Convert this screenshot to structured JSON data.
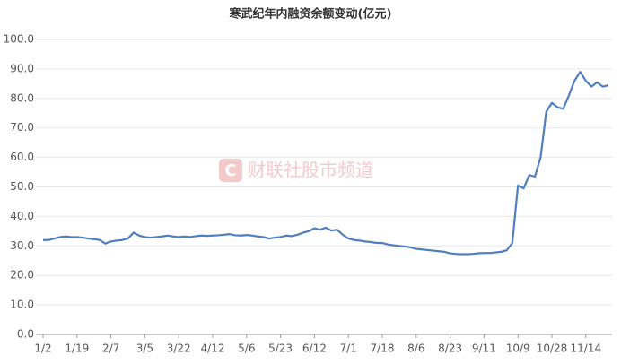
{
  "chart_data": {
    "type": "line",
    "title": "寒武纪年内融资余额变动(亿元)",
    "watermark": "财联社股市频道",
    "categories": [
      "1/2",
      null,
      null,
      null,
      null,
      null,
      "1/19",
      null,
      null,
      null,
      null,
      null,
      "2/7",
      null,
      null,
      null,
      null,
      null,
      "3/5",
      null,
      null,
      null,
      null,
      null,
      "3/22",
      null,
      null,
      null,
      null,
      null,
      "4/12",
      null,
      null,
      null,
      null,
      null,
      "5/6",
      null,
      null,
      null,
      null,
      null,
      "5/23",
      null,
      null,
      null,
      null,
      null,
      "6/12",
      null,
      null,
      null,
      null,
      null,
      "7/1",
      null,
      null,
      null,
      null,
      null,
      "7/18",
      null,
      null,
      null,
      null,
      null,
      "8/6",
      null,
      null,
      null,
      null,
      null,
      "8/23",
      null,
      null,
      null,
      null,
      null,
      "9/11",
      null,
      null,
      null,
      null,
      null,
      "10/9",
      null,
      null,
      null,
      null,
      null,
      "10/28",
      null,
      null,
      null,
      null,
      null,
      "11/14",
      null,
      null,
      null,
      null
    ],
    "values": [
      32,
      32,
      32.5,
      33,
      33.2,
      33,
      33,
      32.8,
      32.5,
      32.3,
      32,
      30.8,
      31.5,
      31.8,
      32,
      32.5,
      34.5,
      33.5,
      33,
      32.8,
      33,
      33.2,
      33.5,
      33.2,
      33,
      33.2,
      33,
      33.3,
      33.5,
      33.4,
      33.5,
      33.6,
      33.8,
      34,
      33.6,
      33.5,
      33.7,
      33.5,
      33.2,
      33,
      32.5,
      32.8,
      33,
      33.5,
      33.3,
      33.8,
      34.5,
      35,
      36,
      35.5,
      36.2,
      35.2,
      35.5,
      33.8,
      32.5,
      32,
      31.8,
      31.5,
      31.3,
      31,
      31,
      30.5,
      30.2,
      30,
      29.8,
      29.5,
      29,
      28.8,
      28.6,
      28.4,
      28.2,
      28,
      27.5,
      27.3,
      27.2,
      27.2,
      27.3,
      27.5,
      27.6,
      27.6,
      27.8,
      28,
      28.5,
      31,
      50.5,
      49.5,
      54,
      53.5,
      60,
      75.5,
      78.5,
      77,
      76.5,
      81,
      86,
      89,
      86,
      84,
      85.5,
      84,
      84.5
    ],
    "color": "#4f7fbf",
    "ylim": [
      0,
      100
    ],
    "yticks": [
      {
        "value": 0,
        "label": "0.0"
      },
      {
        "value": 10,
        "label": "10.0"
      },
      {
        "value": 20,
        "label": "20.0"
      },
      {
        "value": 30,
        "label": "30.0"
      },
      {
        "value": 40,
        "label": "40.0"
      },
      {
        "value": 50,
        "label": "50.0"
      },
      {
        "value": 60,
        "label": "60.0"
      },
      {
        "value": 70,
        "label": "70.0"
      },
      {
        "value": 80,
        "label": "80.0"
      },
      {
        "value": 90,
        "label": "90.0"
      },
      {
        "value": 100,
        "label": "100.0"
      }
    ],
    "grid": true
  }
}
